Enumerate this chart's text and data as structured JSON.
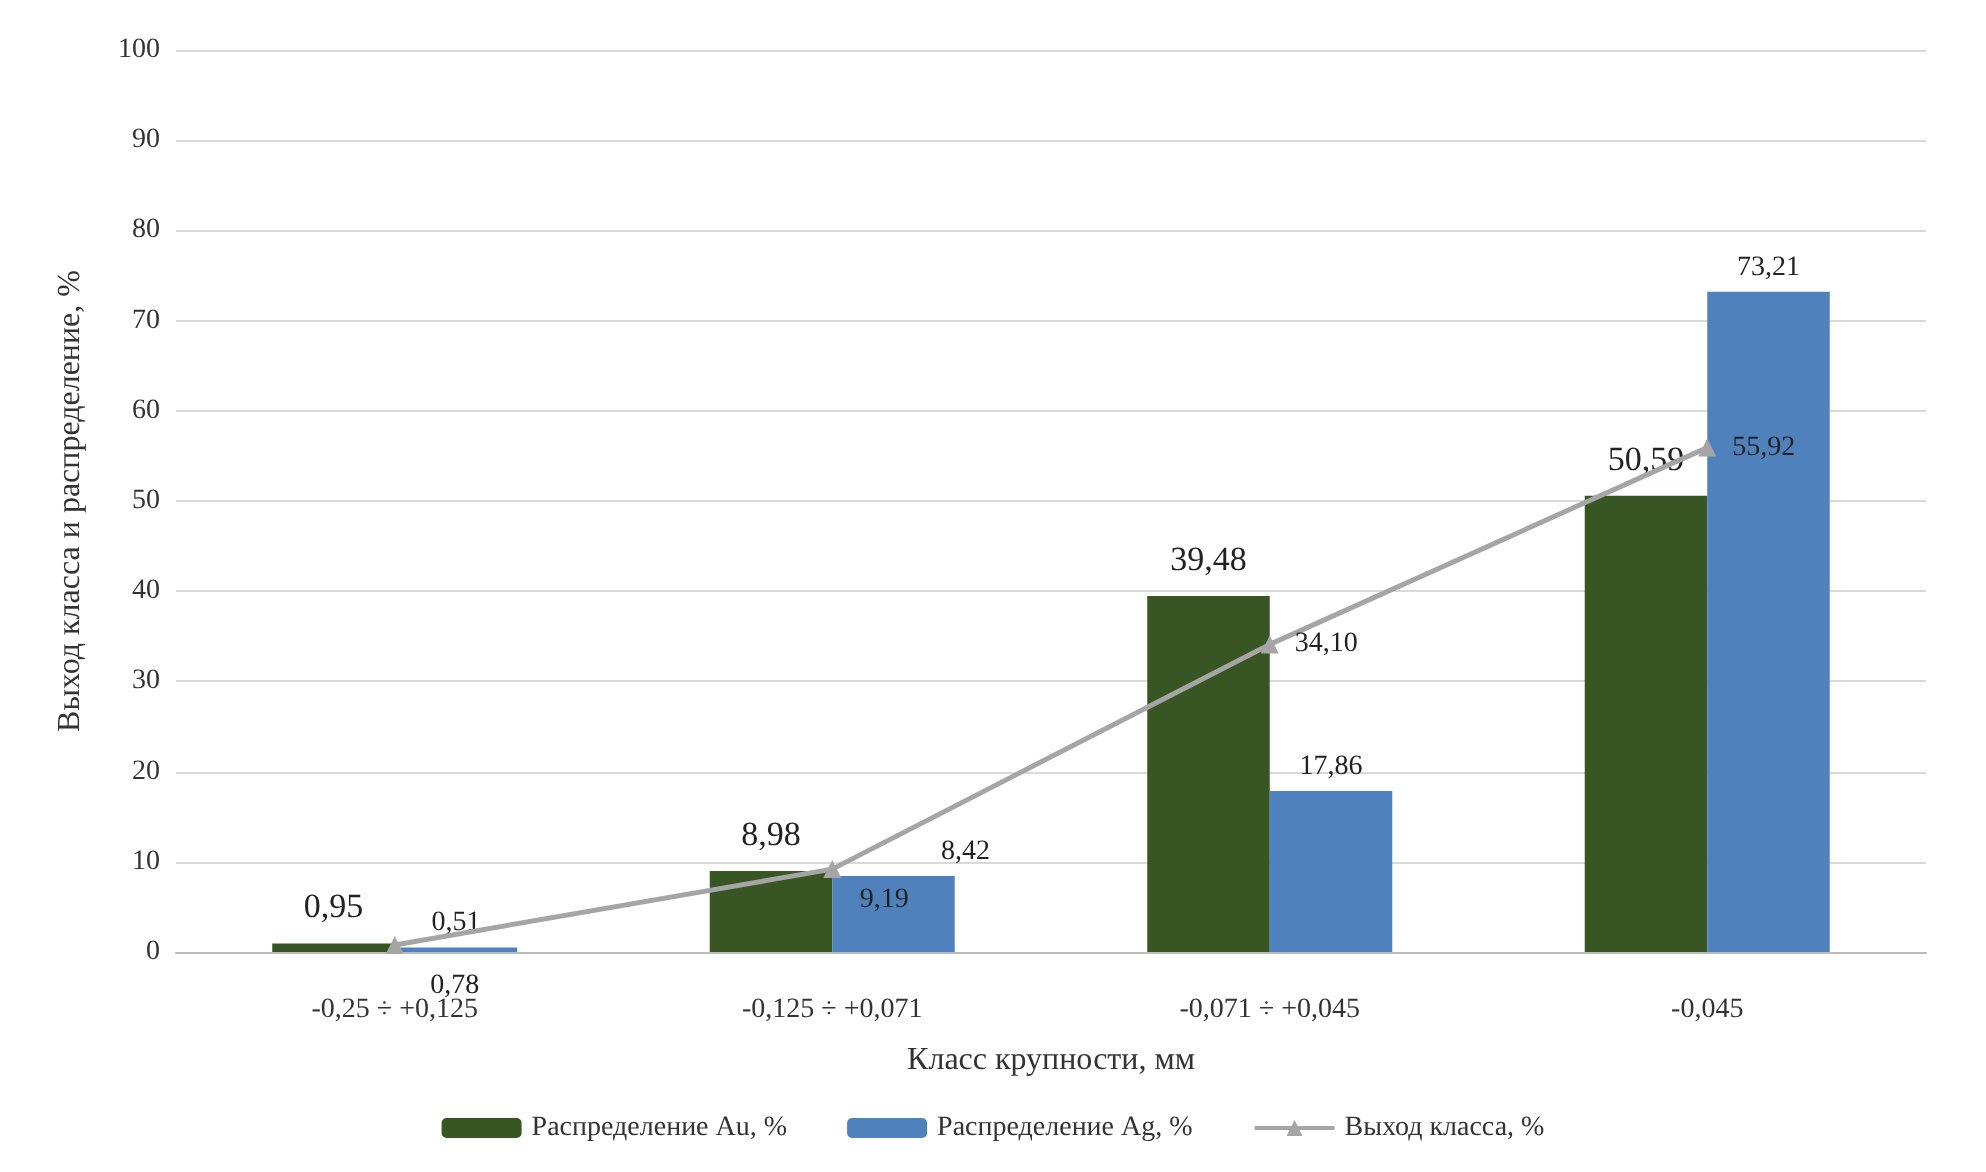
{
  "chart_data": {
    "type": "bar",
    "xlabel": "Класс крупности, мм",
    "ylabel": "Выход класса и распределение, %",
    "categories": [
      "-0,25 ÷ +0,125",
      "-0,125 ÷ +0,071",
      "-0,071 ÷ +0,045",
      "-0,045"
    ],
    "series": [
      {
        "name": "Распределение Au, %",
        "color": "#375623",
        "values": [
          0.95,
          8.98,
          39.48,
          50.59
        ],
        "value_labels": [
          "0,95",
          "8,98",
          "39,48",
          "50,59"
        ]
      },
      {
        "name": "Распределение Ag, %",
        "color": "#4f81bd",
        "values": [
          0.51,
          8.42,
          17.86,
          73.21
        ],
        "value_labels": [
          "0,51",
          "8,42",
          "17,86",
          "73,21"
        ]
      },
      {
        "name": "Выход класса, %",
        "type": "line",
        "color": "#a5a5a5",
        "marker": "triangle",
        "values": [
          0.78,
          9.19,
          34.1,
          55.92
        ],
        "value_labels": [
          "0,78",
          "9,19",
          "34,10",
          "55,92"
        ]
      }
    ],
    "ylim": [
      0,
      100
    ],
    "yticks": [
      0,
      10,
      20,
      30,
      40,
      50,
      60,
      70,
      80,
      90,
      100
    ],
    "grid": "y",
    "legend": "bottom"
  }
}
